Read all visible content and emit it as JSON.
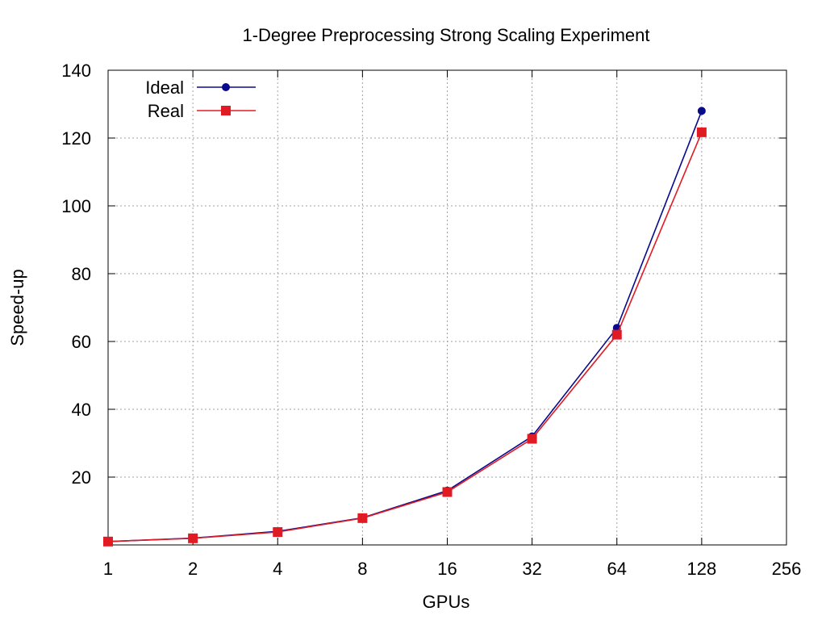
{
  "chart_data": {
    "type": "line",
    "title": "1-Degree Preprocessing Strong Scaling Experiment",
    "xlabel": "GPUs",
    "ylabel": "Speed-up",
    "x_scale": "log2",
    "x_ticks": [
      1,
      2,
      4,
      8,
      16,
      32,
      64,
      128,
      256
    ],
    "x_tick_labels": [
      "1",
      "2",
      "4",
      "8",
      "16",
      "32",
      "64",
      "128",
      "256"
    ],
    "y_ticks": [
      20,
      40,
      60,
      80,
      100,
      120,
      140
    ],
    "y_tick_labels": [
      "20",
      "40",
      "60",
      "80",
      "100",
      "120",
      "140"
    ],
    "xlim": [
      1,
      256
    ],
    "ylim": [
      0,
      140
    ],
    "grid": true,
    "legend_position": "top-left",
    "x": [
      1,
      2,
      4,
      8,
      16,
      32,
      64,
      128
    ],
    "series": [
      {
        "name": "Ideal",
        "color": "#0a0a8c",
        "marker": "circle",
        "values": [
          1,
          2,
          4,
          8,
          16,
          32,
          64,
          128
        ]
      },
      {
        "name": "Real",
        "color": "#e01b24",
        "marker": "square",
        "values": [
          1,
          1.95,
          3.8,
          7.9,
          15.6,
          31.3,
          62,
          121.7
        ]
      }
    ]
  }
}
